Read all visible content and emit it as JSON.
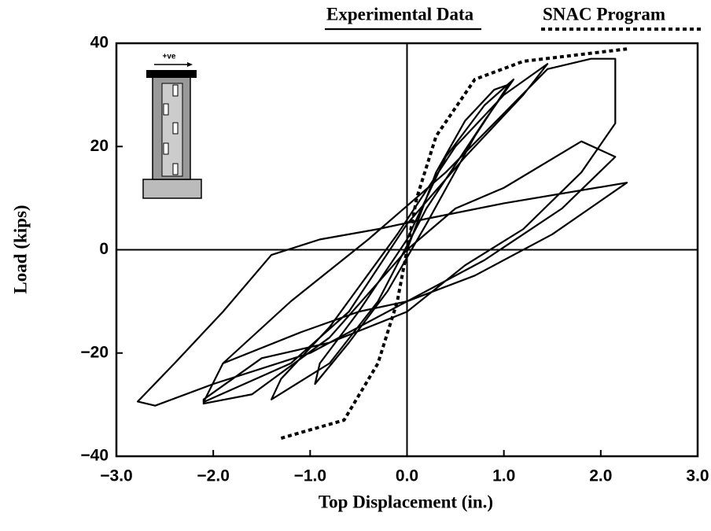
{
  "chart_data": {
    "type": "line",
    "xlabel": "Top Displacement (in.)",
    "ylabel": "Load (kips)",
    "annotations": [
      "+ve"
    ],
    "xlim": [
      -3.0,
      3.0
    ],
    "ylim": [
      -40,
      40
    ],
    "xticks": [
      {
        "value": -3.0,
        "label": "−3.0"
      },
      {
        "value": -2.0,
        "label": "−2.0"
      },
      {
        "value": -1.0,
        "label": "−1.0"
      },
      {
        "value": 0,
        "label": "0.0"
      },
      {
        "value": 1.0,
        "label": "1.0"
      },
      {
        "value": 2.0,
        "label": "2.0"
      },
      {
        "value": 3.0,
        "label": "3.0"
      }
    ],
    "yticks": [
      {
        "value": -40,
        "label": "−40"
      },
      {
        "value": -20,
        "label": "−20"
      },
      0,
      20,
      40
    ],
    "series": [
      {
        "name": "Experimental Data",
        "color": "#000000",
        "dash": "solid",
        "x": [
          0,
          0.3,
          0.6,
          0.9,
          1.05,
          0.7,
          0.2,
          -0.2,
          -0.6,
          -0.95,
          -0.9,
          -0.5,
          0,
          0.4,
          0.8,
          1.1,
          0.8,
          0.2,
          -0.3,
          -0.8,
          -1.4,
          -1.3,
          -0.8,
          -0.1,
          0.5,
          1.0,
          1.45,
          1.2,
          0.6,
          0,
          -0.6,
          -1.2,
          -2.1,
          -1.9,
          -1.2,
          -0.4,
          0.4,
          1.45,
          1.9,
          2.15,
          2.15,
          1.8,
          1.2,
          0.6,
          0,
          -0.8,
          -1.5,
          -2.1,
          -2.1,
          -1.6,
          -0.8,
          0,
          0.5,
          1.0,
          1.8,
          2.15,
          1.6,
          0.8,
          0,
          -1.0,
          -2.0,
          -2.6,
          -2.78,
          -2.4,
          -1.9,
          -1.4,
          -0.9,
          -0.3,
          0.2,
          1.0,
          2.27,
          1.5,
          0.7,
          0,
          -0.5,
          -1.1,
          -1.9
        ],
        "values": [
          0,
          15,
          25,
          31,
          32,
          22,
          5,
          -8,
          -18,
          -26,
          -22,
          -12,
          2,
          18,
          28,
          33,
          25,
          8,
          -10,
          -22,
          -29,
          -25,
          -15,
          3,
          20,
          30,
          36,
          30,
          18,
          5,
          -12,
          -22,
          -29.5,
          -22,
          -10,
          2,
          15,
          35,
          37,
          37,
          24.5,
          15,
          4,
          -3,
          -12,
          -18,
          -21,
          -29,
          -29.8,
          -28,
          -17,
          0,
          8,
          12,
          21,
          18,
          8,
          -2,
          -10,
          -20,
          -26,
          -30.2,
          -29.4,
          -22,
          -12,
          -1,
          2,
          4,
          6,
          9,
          13,
          3,
          -5,
          -10,
          -12,
          -16,
          -22
        ]
      },
      {
        "name": "SNAC Program",
        "color": "#000000",
        "dash": "dotted",
        "x": [
          -1.3,
          -0.65,
          -0.3,
          -0.1,
          0,
          0.1,
          0.3,
          0.7,
          1.2,
          2.27
        ],
        "values": [
          -36.5,
          -33,
          -22,
          -10,
          0,
          10,
          22,
          33,
          36.5,
          38.9
        ]
      }
    ]
  }
}
